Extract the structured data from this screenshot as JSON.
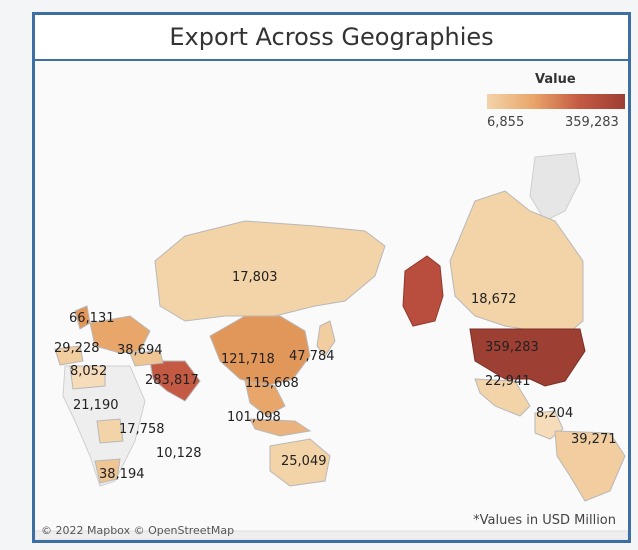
{
  "title": "Export Across Geographies",
  "legend": {
    "title": "Value",
    "min": "6,855",
    "max": "359,283"
  },
  "colors": {
    "frame": "#3d6fa5",
    "low": "#f3d3a8",
    "mid": "#e9a66a",
    "high": "#9e3f33"
  },
  "labels": {
    "russia": "17,803",
    "canada": "18,672",
    "usa": "359,283",
    "uk": "66,131",
    "iberia": "29,228",
    "turkey": "38,694",
    "north_africa": "8,052",
    "middle_east": "283,817",
    "china": "121,718",
    "korea_japan": "47,784",
    "southeast_asia": "115,668",
    "mexico": "22,941",
    "west_africa": "21,190",
    "indonesia": "101,098",
    "central_africa": "17,758",
    "east_africa": "10,128",
    "south_africa": "38,194",
    "colombia": "8,204",
    "brazil": "39,271",
    "australia": "25,049"
  },
  "attribution": "© 2022 Mapbox © OpenStreetMap",
  "note": "*Values in USD Million"
}
